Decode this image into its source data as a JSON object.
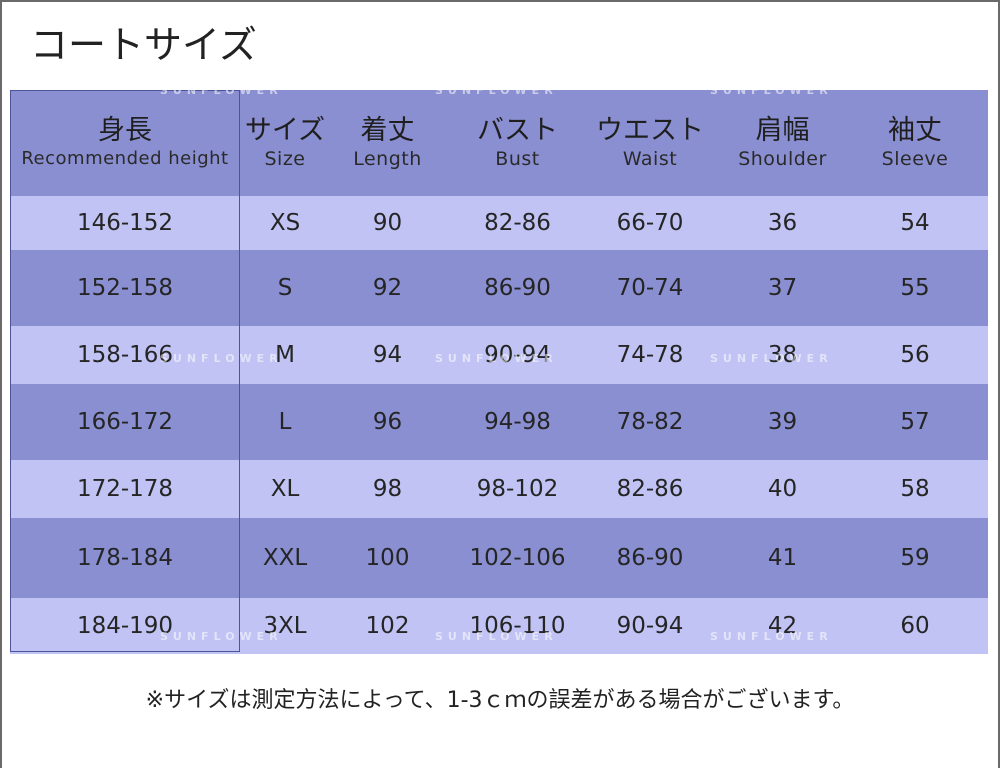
{
  "title": "コートサイズ",
  "watermark_text": "SUNFLOWER",
  "colors": {
    "header_bg": "#8a8fd2",
    "row_dark": "#8a8fd2",
    "row_light": "#c0c3f3",
    "first_col_border": "#4d5596"
  },
  "table": {
    "headers": [
      {
        "jp": "身長",
        "en": "Recommended height"
      },
      {
        "jp": "サイズ",
        "en": "Size"
      },
      {
        "jp": "着丈",
        "en": "Length"
      },
      {
        "jp": "バスト",
        "en": "Bust"
      },
      {
        "jp": "ウエスト",
        "en": "Waist"
      },
      {
        "jp": "肩幅",
        "en": "Shoulder"
      },
      {
        "jp": "袖丈",
        "en": "Sleeve"
      }
    ],
    "rows": [
      [
        "146-152",
        "XS",
        "90",
        "82-86",
        "66-70",
        "36",
        "54"
      ],
      [
        "152-158",
        "S",
        "92",
        "86-90",
        "70-74",
        "37",
        "55"
      ],
      [
        "158-166",
        "M",
        "94",
        "90-94",
        "74-78",
        "38",
        "56"
      ],
      [
        "166-172",
        "L",
        "96",
        "94-98",
        "78-82",
        "39",
        "57"
      ],
      [
        "172-178",
        "XL",
        "98",
        "98-102",
        "82-86",
        "40",
        "58"
      ],
      [
        "178-184",
        "XXL",
        "100",
        "102-106",
        "86-90",
        "41",
        "59"
      ],
      [
        "184-190",
        "3XL",
        "102",
        "106-110",
        "90-94",
        "42",
        "60"
      ]
    ]
  },
  "note": "※サイズは測定方法によって、1-3ｃｍの誤差がある場合がございます。"
}
